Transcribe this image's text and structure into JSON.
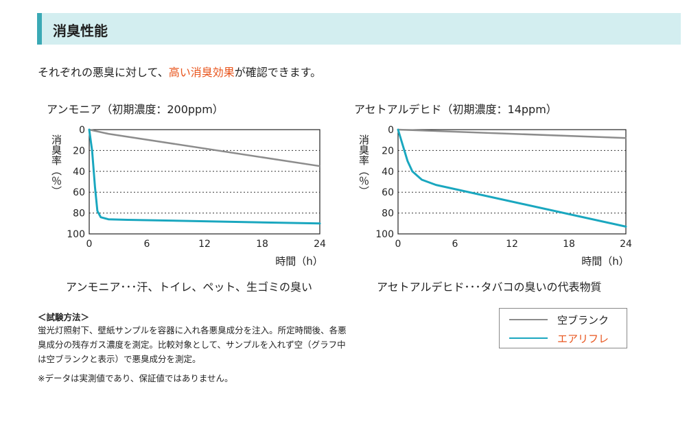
{
  "header": {
    "title": "消臭性能"
  },
  "intro": {
    "before": "それぞれの悪臭に対して、",
    "highlight": "高い消臭効果",
    "after": "が確認できます。"
  },
  "colors": {
    "blank": "#8c8c8c",
    "airrifre": "#1aa7bf",
    "highlight": "#e8541c",
    "header_bg": "#d3eef0",
    "header_bar": "#3aa9b5"
  },
  "chart_data": [
    {
      "type": "line",
      "title": "アンモニア（初期濃度：200ppm）",
      "ylabel": "消臭率（％）",
      "xlabel": "時間（h）",
      "xticks": [
        "0",
        "6",
        "12",
        "18",
        "24"
      ],
      "yticks": [
        "0",
        "20",
        "40",
        "60",
        "80",
        "100"
      ],
      "xlim": [
        0,
        24
      ],
      "ylim": [
        0,
        100
      ],
      "y_inverted": true,
      "grid": "dotted horizontal",
      "caption": "アンモニア･･･汗、トイレ、ペット、生ゴミの臭い",
      "series": [
        {
          "name": "空ブランク",
          "color": "#8c8c8c",
          "x": [
            0,
            2,
            24
          ],
          "y": [
            0,
            4,
            35
          ]
        },
        {
          "name": "エアリフレ",
          "color": "#1aa7bf",
          "x": [
            0,
            0.3,
            0.6,
            0.85,
            1.2,
            2,
            4,
            24
          ],
          "y": [
            0,
            20,
            55,
            78,
            84,
            86,
            86.5,
            90
          ]
        }
      ]
    },
    {
      "type": "line",
      "title": "アセトアルデヒド（初期濃度：14ppm）",
      "ylabel": "消臭率（％）",
      "xlabel": "時間（h）",
      "xticks": [
        "0",
        "6",
        "12",
        "18",
        "24"
      ],
      "yticks": [
        "0",
        "20",
        "40",
        "60",
        "80",
        "100"
      ],
      "xlim": [
        0,
        24
      ],
      "ylim": [
        0,
        100
      ],
      "y_inverted": true,
      "grid": "dotted horizontal",
      "caption": "アセトアルデヒド･･･タバコの臭いの代表物質",
      "series": [
        {
          "name": "空ブランク",
          "color": "#8c8c8c",
          "x": [
            0,
            24
          ],
          "y": [
            0,
            8
          ]
        },
        {
          "name": "エアリフレ",
          "color": "#1aa7bf",
          "x": [
            0,
            0.5,
            1,
            1.5,
            2.5,
            4,
            24
          ],
          "y": [
            0,
            15,
            30,
            40,
            48,
            53,
            93
          ]
        }
      ]
    }
  ],
  "method": {
    "heading": "＜試験方法＞",
    "line1": "蛍光灯照射下、壁紙サンプルを容器に入れ各悪臭成分を注入。所定時間後、各悪",
    "line2": "臭成分の残存ガス濃度を測定。比較対象として、サンプルを入れず空（グラフ中",
    "line3": "は空ブランクと表示）で悪臭成分を測定。",
    "note": "※データは実測値であり、保証値ではありません。"
  },
  "legend": {
    "blank_label": "空ブランク",
    "airrifre_label": "エアリフレ"
  }
}
